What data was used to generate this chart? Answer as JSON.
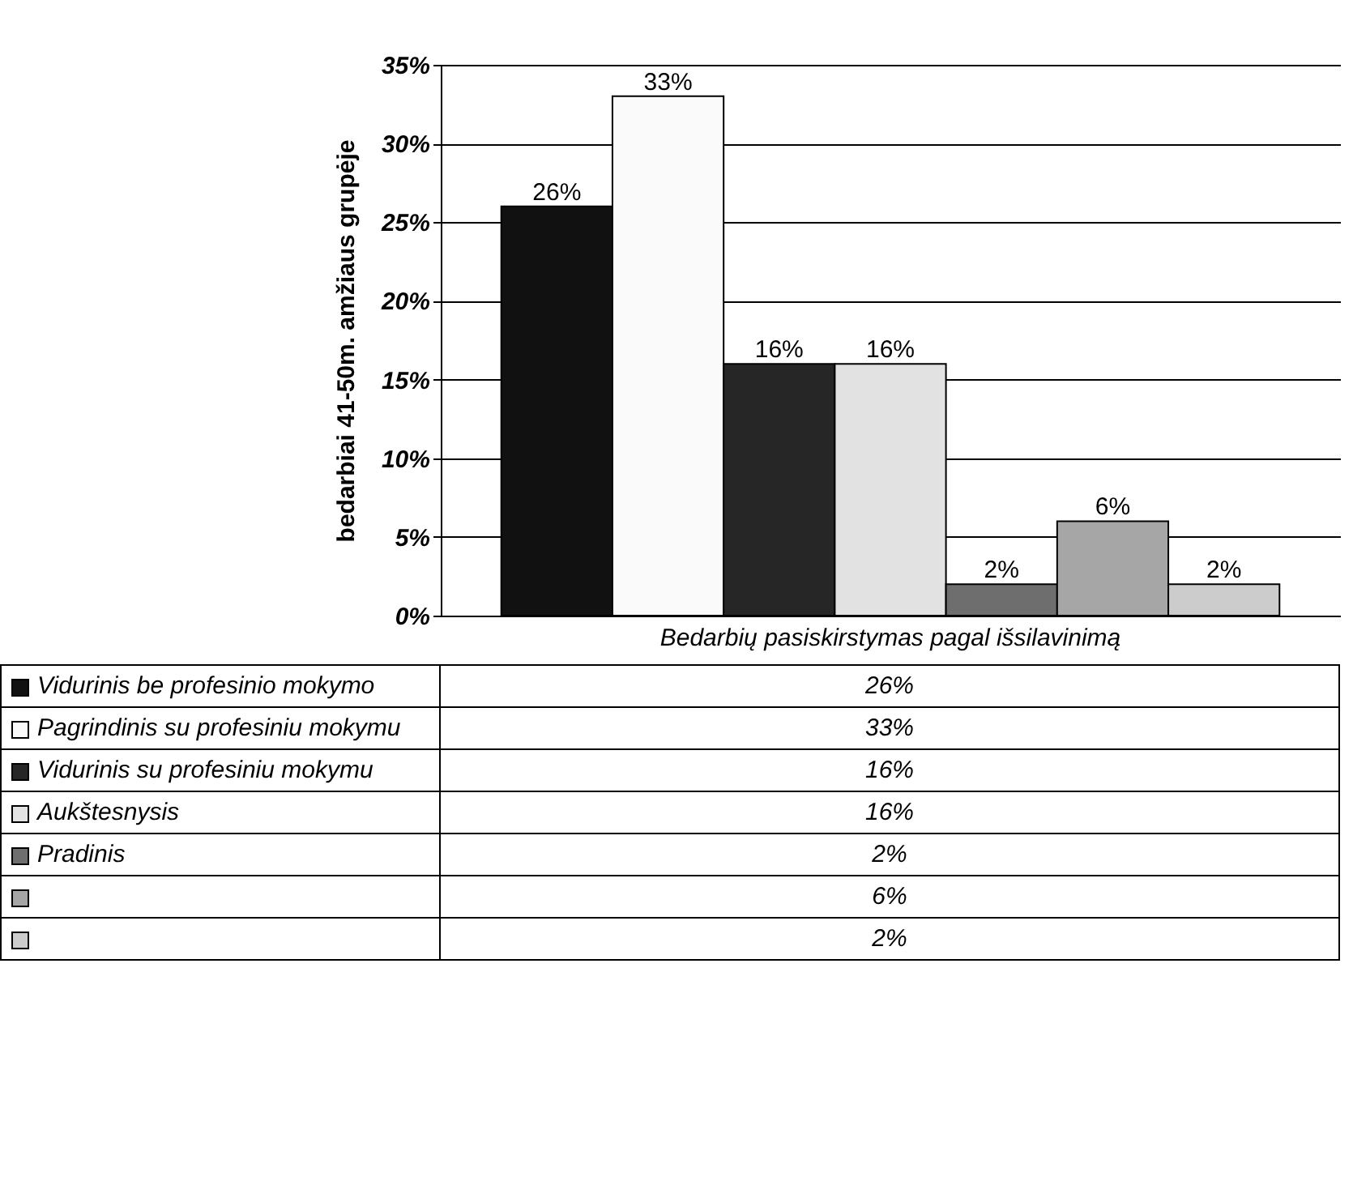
{
  "chart_data": {
    "type": "bar",
    "ylabel": "bedarbiai 41-50m. amžiaus grupėje",
    "categories": [
      "Bedarbių pasiskirstymas pagal išsilavinimą"
    ],
    "ylim": [
      0,
      35
    ],
    "yticks": [
      {
        "value": 0,
        "label": "0%"
      },
      {
        "value": 5,
        "label": "5%"
      },
      {
        "value": 10,
        "label": "10%"
      },
      {
        "value": 15,
        "label": "15%"
      },
      {
        "value": 20,
        "label": "20%"
      },
      {
        "value": 25,
        "label": "25%"
      },
      {
        "value": 30,
        "label": "30%"
      },
      {
        "value": 35,
        "label": "35%"
      }
    ],
    "grid": "y",
    "legend": "bottom",
    "series": [
      {
        "name": "Vidurinis be profesinio mokymo",
        "color": "#111111",
        "values": [
          26
        ],
        "value_labels": [
          "26%"
        ]
      },
      {
        "name": "Pagrindinis su profesiniu mokymu",
        "color": "#fafafa",
        "values": [
          33
        ],
        "value_labels": [
          "33%"
        ]
      },
      {
        "name": "Vidurinis su profesiniu mokymu",
        "color": "#262626",
        "values": [
          16
        ],
        "value_labels": [
          "16%"
        ]
      },
      {
        "name": "Aukštesnysis",
        "color": "#e2e2e2",
        "values": [
          16
        ],
        "value_labels": [
          "16%"
        ]
      },
      {
        "name": "Pradinis",
        "color": "#6e6e6e",
        "values": [
          2
        ],
        "value_labels": [
          "2%"
        ]
      },
      {
        "color": "#a6a6a6",
        "values": [
          6
        ],
        "value_labels": [
          "6%"
        ]
      },
      {
        "color": "#cccccc",
        "values": [
          2
        ],
        "value_labels": [
          "2%"
        ]
      }
    ]
  }
}
